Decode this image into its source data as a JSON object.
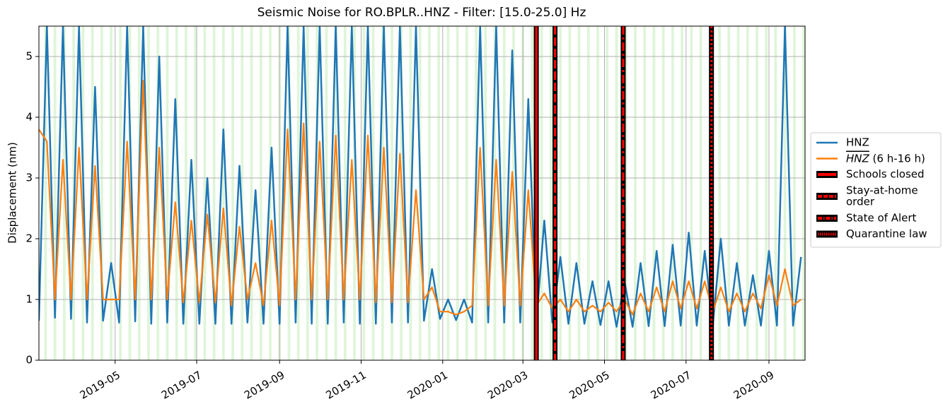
{
  "chart_data": {
    "type": "line",
    "title": "Seismic Noise for RO.BPLR..HNZ - Filter: [15.0-25.0] Hz",
    "ylabel": "Displacement (nm)",
    "x": [
      0,
      6,
      12,
      18,
      24,
      30,
      36,
      42,
      48,
      54,
      60,
      66,
      72,
      78,
      84,
      90,
      96,
      102,
      108,
      114,
      120,
      126,
      132,
      138,
      144,
      150,
      156,
      162,
      168,
      174,
      180,
      186,
      192,
      198,
      204,
      210,
      216,
      222,
      228,
      234,
      240,
      246,
      252,
      258,
      264,
      270,
      276,
      282,
      288,
      294,
      300,
      306,
      312,
      318,
      324,
      330,
      336,
      342,
      348,
      354,
      360,
      366,
      372,
      378,
      384,
      390,
      396,
      402,
      408,
      414,
      420,
      426,
      432,
      438,
      444,
      450,
      456,
      462,
      468,
      474,
      480,
      486,
      492,
      498,
      504,
      510,
      516,
      522,
      528,
      534,
      540,
      546,
      552,
      558,
      564,
      570
    ],
    "xlim": [
      0,
      573
    ],
    "xticks": [
      {
        "value": 57,
        "label": "2019-05"
      },
      {
        "value": 118,
        "label": "2019-07"
      },
      {
        "value": 180,
        "label": "2019-09"
      },
      {
        "value": 241,
        "label": "2019-11"
      },
      {
        "value": 302,
        "label": "2020-01"
      },
      {
        "value": 362,
        "label": "2020-03"
      },
      {
        "value": 423,
        "label": "2020-05"
      },
      {
        "value": 484,
        "label": "2020-07"
      },
      {
        "value": 546,
        "label": "2020-09"
      }
    ],
    "ylim": [
      0,
      5.5
    ],
    "yticks": [
      0,
      1,
      2,
      3,
      4,
      5
    ],
    "grid": true,
    "legend": "right",
    "series": [
      {
        "name": "HNZ",
        "color": "#1f77b4",
        "values": [
          0.65,
          5.5,
          0.7,
          5.5,
          0.68,
          5.5,
          0.62,
          4.5,
          0.65,
          1.6,
          0.62,
          5.5,
          0.64,
          5.5,
          0.6,
          5.0,
          0.62,
          4.3,
          0.6,
          3.3,
          0.6,
          3.0,
          0.6,
          3.8,
          0.6,
          3.2,
          0.62,
          2.8,
          0.6,
          3.5,
          0.6,
          5.5,
          0.62,
          5.5,
          0.6,
          5.5,
          0.6,
          5.5,
          0.62,
          5.5,
          0.6,
          5.5,
          0.6,
          5.5,
          0.62,
          5.5,
          0.62,
          5.5,
          0.65,
          1.5,
          0.68,
          1.0,
          0.66,
          1.0,
          0.62,
          5.5,
          0.62,
          5.5,
          0.62,
          5.1,
          0.62,
          4.3,
          0.62,
          2.3,
          0.62,
          1.7,
          0.6,
          1.6,
          0.6,
          1.3,
          0.58,
          1.3,
          0.55,
          1.3,
          0.55,
          1.6,
          0.56,
          1.8,
          0.56,
          1.9,
          0.57,
          2.1,
          0.57,
          1.8,
          0.57,
          2.0,
          0.57,
          1.6,
          0.57,
          1.4,
          0.57,
          1.8,
          0.57,
          5.5,
          0.57,
          1.7
        ]
      },
      {
        "name": "HNZ (6 h-16 h)",
        "color": "#ff7f0e",
        "values": [
          3.8,
          3.6,
          1.0,
          3.3,
          1.0,
          3.5,
          1.0,
          3.2,
          1.0,
          1.0,
          1.0,
          3.6,
          1.0,
          4.6,
          1.0,
          3.5,
          1.0,
          2.6,
          0.95,
          2.3,
          0.95,
          2.4,
          0.95,
          2.5,
          0.9,
          2.2,
          1.0,
          1.6,
          0.9,
          2.3,
          0.9,
          3.8,
          1.0,
          3.9,
          1.0,
          3.6,
          1.0,
          3.7,
          1.0,
          3.3,
          1.0,
          3.7,
          0.95,
          3.5,
          0.95,
          3.4,
          0.95,
          2.8,
          1.0,
          1.2,
          0.8,
          0.8,
          0.75,
          0.8,
          0.9,
          3.5,
          0.9,
          3.3,
          0.9,
          3.1,
          0.9,
          2.8,
          0.9,
          1.1,
          0.85,
          1.0,
          0.8,
          1.0,
          0.8,
          0.9,
          0.8,
          0.95,
          0.8,
          1.0,
          0.75,
          1.1,
          0.8,
          1.2,
          0.8,
          1.3,
          0.85,
          1.3,
          0.85,
          1.3,
          0.8,
          1.2,
          0.8,
          1.1,
          0.8,
          1.1,
          0.85,
          1.4,
          0.9,
          1.5,
          0.9,
          1.0
        ]
      }
    ],
    "events": [
      {
        "name": "Schools closed",
        "x": 372,
        "style": "solid",
        "color": "#ff0000"
      },
      {
        "name": "Stay-at-home order",
        "x": 386,
        "style": "dashed",
        "color": "#ff0000"
      },
      {
        "name": "State of Alert",
        "x": 437,
        "style": "dashdot",
        "color": "#ff0000"
      },
      {
        "name": "Quarantine law",
        "x": 503,
        "style": "dotted",
        "color": "#ff0000"
      }
    ]
  }
}
